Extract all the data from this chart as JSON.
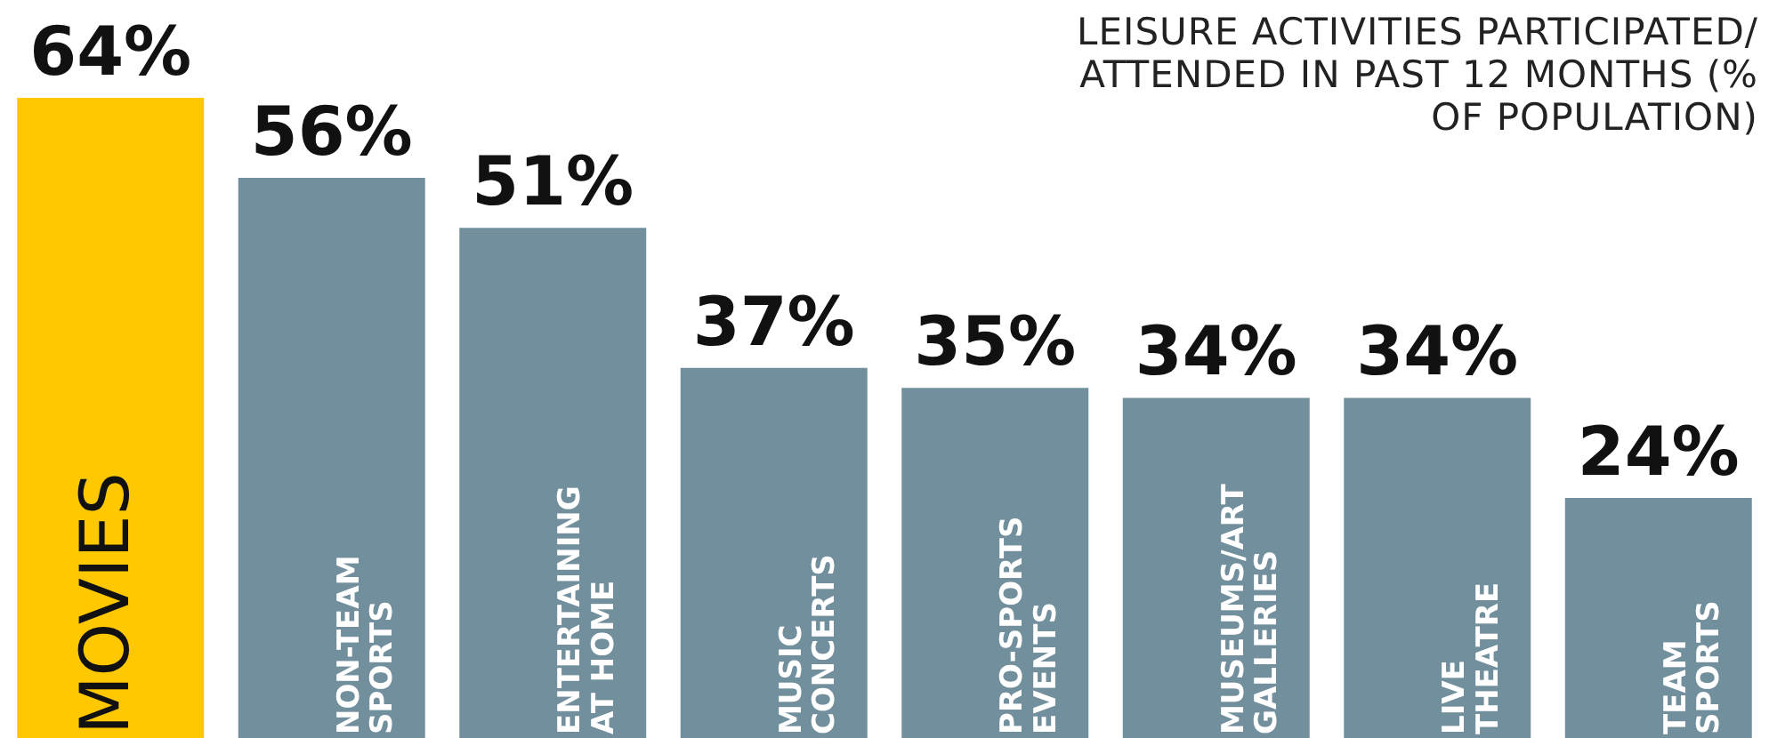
{
  "chart_data": {
    "type": "bar",
    "title": "LEISURE ACTIVITIES PARTICIPATED/ ATTENDED IN PAST 12 MONTHS (% OF POPULATION)",
    "categories": [
      "MOVIES",
      "NON-TEAM SPORTS",
      "ENTERTAINING AT HOME",
      "MUSIC CONCERTS",
      "PRO-SPORTS EVENTS",
      "MUSEUMS/ART GALLERIES",
      "LIVE THEATRE",
      "TEAM SPORTS"
    ],
    "values": [
      64,
      56,
      51,
      37,
      35,
      34,
      34,
      24
    ],
    "colors": [
      "#ffc800",
      "#728f9d",
      "#728f9d",
      "#728f9d",
      "#728f9d",
      "#728f9d",
      "#728f9d",
      "#728f9d"
    ],
    "value_labels": [
      "64%",
      "56%",
      "51%",
      "37%",
      "35%",
      "34%",
      "34%",
      "24%"
    ],
    "legend": false
  }
}
